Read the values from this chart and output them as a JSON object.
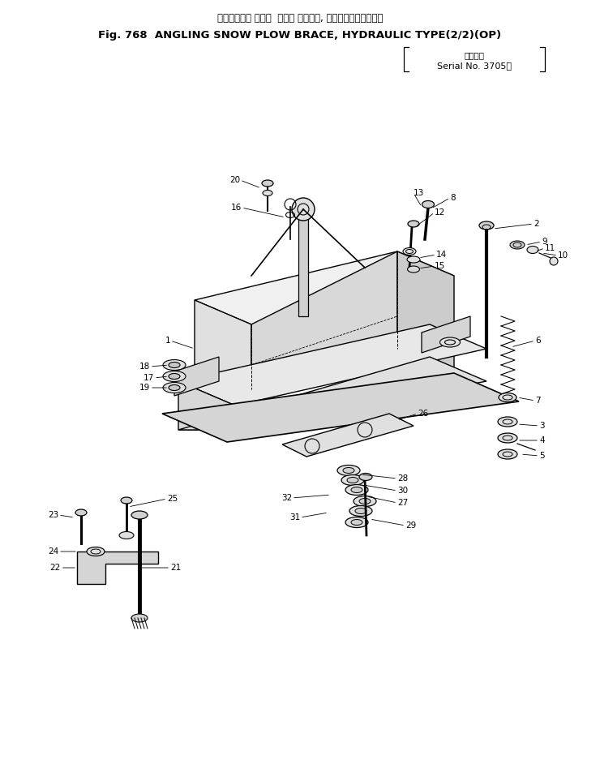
{
  "title_jp": "アングリング スノー  ブラウ ブレース, ハイドロリックタイプ",
  "title_en": "Fig. 768  ANGLING SNOW PLOW BRACE, HYDRAULIC TYPE(2/2)(OP)",
  "serial_label": "適用号機",
  "serial_no": "Serial No. 3705～",
  "bg_color": "#ffffff",
  "text_color": "#000000",
  "fig_width": 7.4,
  "fig_height": 9.42,
  "dpi": 100
}
